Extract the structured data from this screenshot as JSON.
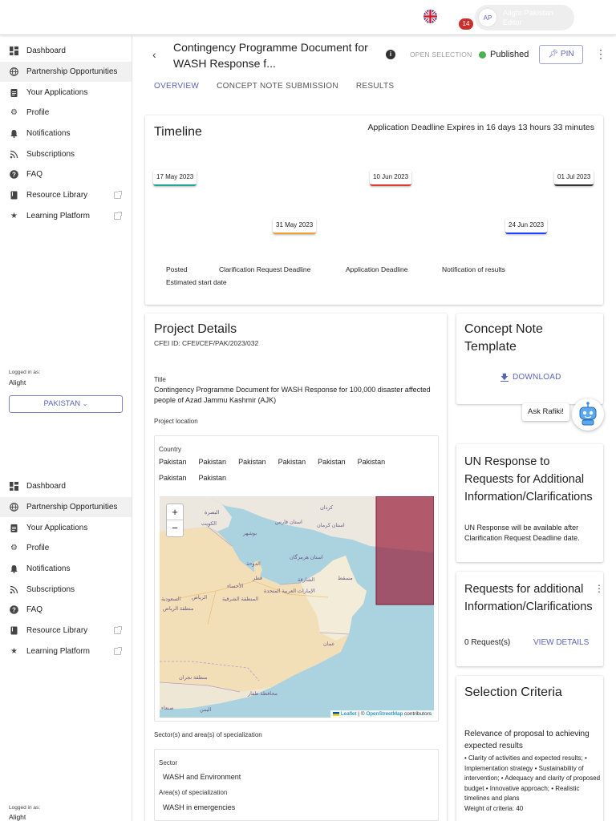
{
  "header": {
    "badge_count": "14",
    "avatar_initials": "AP",
    "user_name": "Alight Pakistan",
    "user_role": "Editor"
  },
  "sidebar": {
    "items": [
      {
        "label": "Dashboard",
        "icon": "dashboard-icon"
      },
      {
        "label": "Partnership Opportunities",
        "icon": "globe-icon"
      },
      {
        "label": "Your Applications",
        "icon": "clipboard-icon"
      },
      {
        "label": "Profile",
        "icon": "gear-icon"
      },
      {
        "label": "Notifications",
        "icon": "bell-icon"
      },
      {
        "label": "Subscriptions",
        "icon": "rss-icon"
      },
      {
        "label": "FAQ",
        "icon": "help-icon"
      },
      {
        "label": "Resource Library",
        "icon": "book-icon",
        "external": true
      },
      {
        "label": "Learning Platform",
        "icon": "star-icon",
        "external": true
      }
    ],
    "logged_in_label": "Logged in as:",
    "logged_in_user": "Alight",
    "country_button": "PAKISTAN"
  },
  "page": {
    "title": "Contingency Programme Document for WASH Response f...",
    "open_selection": "OPEN SELECTION",
    "status": "Published",
    "pin_label": "PIN",
    "status_color": "#4caf50",
    "accent_color": "#5b63b7",
    "tabs": [
      "OVERVIEW",
      "CONCEPT NOTE SUBMISSION",
      "RESULTS"
    ]
  },
  "timeline": {
    "title": "Timeline",
    "deadline_text": "Application Deadline Expires in 16 days 13 hours 33 minutes",
    "events": [
      {
        "date": "17 May 2023",
        "color": "#26a69a"
      },
      {
        "date": "31 May 2023",
        "color": "#f0a030"
      },
      {
        "date": "10 Jun 2023",
        "color": "#e53935"
      },
      {
        "date": "24 Jun 2023",
        "color": "#1e40ff"
      },
      {
        "date": "01 Jul 2023",
        "color": "#333333"
      }
    ],
    "legend": [
      "Posted",
      "Clarification Request Deadline",
      "Application Deadline",
      "Notification of results",
      "Estimated start date"
    ]
  },
  "project": {
    "title": "Project Details",
    "cfei_id": "CFEI ID: CFEI/CEF/PAK/2023/032",
    "title_label": "Title",
    "title_value": "Contingency Programme Document for WASH Response for 100,000 disaster affected people of Azad Jammu Kashmir (AJK)",
    "location_label": "Project location",
    "country_label": "Country",
    "countries": [
      "Pakistan",
      "Pakistan",
      "Pakistan",
      "Pakistan",
      "Pakistan",
      "Pakistan",
      "Pakistan",
      "Pakistan"
    ],
    "map": {
      "zoom_in": "+",
      "zoom_out": "−",
      "attribution_leaflet": "Leaflet",
      "attribution_sep": " | © ",
      "attribution_osm": "OpenStreetMap",
      "attribution_tail": " contributors",
      "labels": [
        "كردان",
        "البصرة",
        "الكويت",
        "بوشهر",
        "استان فارس",
        "استان كرمان",
        "استان هرمزگان",
        "الدوحة",
        "قطر",
        "الشارقة",
        "الإمارات العربية المتحدة",
        "الرياض",
        "السعودية",
        "الأحساء",
        "مسقط",
        "عمان",
        "منطقة نجران",
        "اليمن",
        "صنعاء",
        "محافظة ظفار",
        "المنطقة الشرقية",
        "منطقة الرياض"
      ]
    },
    "sector_heading": "Sector(s) and area(s) of specialization",
    "sector_label": "Sector",
    "sector_value": "WASH and Environment",
    "area_label": "Area(s) of specialization",
    "area_value": "WASH in emergencies"
  },
  "concept_note": {
    "title": "Concept Note Template",
    "download": "DOWNLOAD"
  },
  "assistant": {
    "ask": "Ask Rafiki!"
  },
  "un_response": {
    "title": "UN Response to Requests for Additional Information/Clarifications",
    "text": "UN Response will be available after Clarification Request Deadline date."
  },
  "requests": {
    "title": "Requests for additional Information/Clarifications",
    "count": "0 Request(s)",
    "view_details": "VIEW DETAILS"
  },
  "criteria": {
    "title": "Selection Criteria",
    "heading": "Relevance of proposal to achieving expected results",
    "text": "• Clarity of activities and expected results; • Implementation strategy • Sustainability of intervention; • Adequacy and clarity of proposed budget • Innovative approach; • Realistic timelines and plans",
    "weight": "Weight of criteria: 40"
  }
}
